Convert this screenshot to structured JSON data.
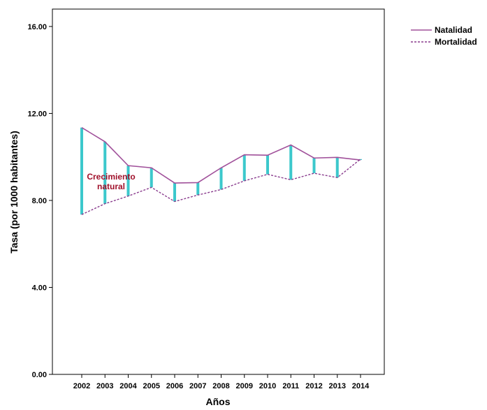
{
  "chart_data": {
    "type": "line",
    "title": "",
    "xlabel": "Años",
    "ylabel": "Tasa (por 1000 habitantes)",
    "categories": [
      "2002",
      "2003",
      "2004",
      "2005",
      "2006",
      "2007",
      "2008",
      "2009",
      "2010",
      "2011",
      "2012",
      "2013",
      "2014"
    ],
    "series": [
      {
        "name": "Natalidad",
        "style": "solid",
        "values": [
          11.35,
          10.7,
          9.6,
          9.5,
          8.8,
          8.82,
          9.5,
          10.1,
          10.08,
          10.55,
          9.95,
          9.98,
          9.86
        ]
      },
      {
        "name": "Mortalidad",
        "style": "dashed",
        "values": [
          7.35,
          7.85,
          8.2,
          8.6,
          7.95,
          8.25,
          8.5,
          8.9,
          9.2,
          8.95,
          9.25,
          9.05,
          9.9
        ]
      }
    ],
    "yticks": [
      "0.00",
      "4.00",
      "8.00",
      "12.00",
      "16.00"
    ],
    "ylim": [
      0,
      16.8
    ],
    "grid": false,
    "legend_position": "top-right",
    "annotation": [
      "Crecimiento",
      "natural"
    ],
    "colors": {
      "natalidad": "#a0509a",
      "mortalidad": "#8a3d8e",
      "gap_bar": "#3cc8cc",
      "annotation": "#a0102a"
    }
  }
}
